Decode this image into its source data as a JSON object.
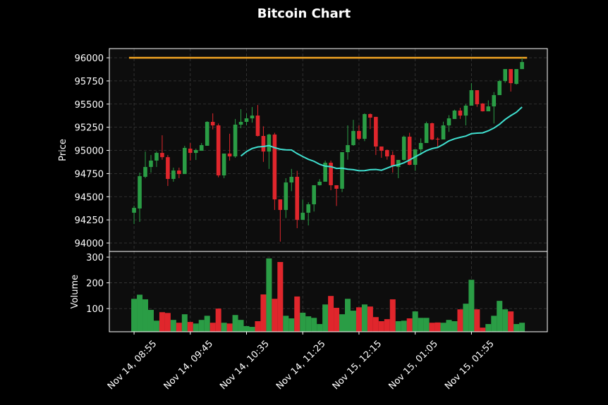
{
  "title": "Bitcoin Chart",
  "chart_data": {
    "type": "candlestick",
    "title": "Bitcoin Chart",
    "price_panel": {
      "ylabel": "Price",
      "yticks": [
        94000,
        94250,
        94500,
        94750,
        95000,
        95250,
        95500,
        95750,
        96000
      ],
      "ylim": [
        93909,
        96099
      ],
      "horizontal_line": {
        "value": 96000,
        "color": "#f5a623"
      },
      "moving_average_color": "#40e0d0"
    },
    "volume_panel": {
      "ylabel": "Volume",
      "yticks": [
        100,
        200,
        300
      ],
      "ylim": [
        10,
        322
      ]
    },
    "xtick_labels": [
      "Nov 14, 08:55",
      "Nov 14, 09:45",
      "Nov 14, 10:35",
      "Nov 14, 11:25",
      "Nov 15, 12:15",
      "Nov 15, 01:05",
      "Nov 15, 01:55"
    ],
    "xtick_every_n_candles": 10,
    "grid": true,
    "colors": {
      "up": "#2a9d45",
      "down": "#e0262c",
      "background": "#0d0d0d",
      "figure": "#000000"
    },
    "ohlc": [
      [
        94327,
        94403,
        94205,
        94380
      ],
      [
        94373,
        94760,
        94228,
        94722
      ],
      [
        94715,
        94988,
        94700,
        94821
      ],
      [
        94821,
        94950,
        94760,
        94890
      ],
      [
        94890,
        94988,
        94821,
        94973
      ],
      [
        94973,
        95163,
        94900,
        94927
      ],
      [
        94927,
        94950,
        94616,
        94692
      ],
      [
        94692,
        94814,
        94662,
        94783
      ],
      [
        94783,
        94814,
        94700,
        94745
      ],
      [
        94745,
        95050,
        94745,
        95027
      ],
      [
        95019,
        95080,
        94890,
        94973
      ],
      [
        94973,
        95019,
        94897,
        95004
      ],
      [
        94996,
        95080,
        94996,
        95057
      ],
      [
        95050,
        95316,
        95050,
        95308
      ],
      [
        95308,
        95400,
        95227,
        95270
      ],
      [
        95270,
        95290,
        94710,
        94730
      ],
      [
        94730,
        94966,
        94700,
        94966
      ],
      [
        94966,
        95180,
        94890,
        94935
      ],
      [
        94935,
        95339,
        94920,
        95278
      ],
      [
        95278,
        95445,
        95240,
        95308
      ],
      [
        95308,
        95400,
        95270,
        95346
      ],
      [
        95346,
        95468,
        95300,
        95376
      ],
      [
        95376,
        95490,
        95150,
        95156
      ],
      [
        95156,
        95260,
        94876,
        94988
      ],
      [
        94988,
        95180,
        94800,
        95171
      ],
      [
        95171,
        95190,
        94357,
        94471
      ],
      [
        94471,
        94471,
        94015,
        94357
      ],
      [
        94357,
        94700,
        94270,
        94654
      ],
      [
        94654,
        94800,
        94560,
        94715
      ],
      [
        94715,
        94780,
        94160,
        94250
      ],
      [
        94250,
        94470,
        94250,
        94327
      ],
      [
        94327,
        94440,
        94190,
        94418
      ],
      [
        94418,
        94624,
        94340,
        94624
      ],
      [
        94624,
        94690,
        94620,
        94662
      ],
      [
        94662,
        94890,
        94662,
        94867
      ],
      [
        94867,
        94890,
        94570,
        94624
      ],
      [
        94624,
        94624,
        94400,
        94586
      ],
      [
        94586,
        94981,
        94550,
        94981
      ],
      [
        94981,
        95270,
        94900,
        95057
      ],
      [
        95057,
        95330,
        95050,
        95210
      ],
      [
        95210,
        95270,
        95110,
        95125
      ],
      [
        95125,
        95400,
        95100,
        95392
      ],
      [
        95392,
        95400,
        95230,
        95354
      ],
      [
        95362,
        95362,
        94950,
        95042
      ],
      [
        95042,
        95042,
        94920,
        94996
      ],
      [
        95004,
        95010,
        94900,
        94935
      ],
      [
        94950,
        94990,
        94760,
        94836
      ],
      [
        94821,
        94897,
        94700,
        94897
      ],
      [
        94897,
        95160,
        94890,
        95148
      ],
      [
        95148,
        95190,
        94840,
        94844
      ],
      [
        94844,
        95011,
        94780,
        95011
      ],
      [
        95011,
        95130,
        94950,
        95080
      ],
      [
        95080,
        95310,
        95080,
        95293
      ],
      [
        95293,
        95300,
        95110,
        95118
      ],
      [
        95125,
        95140,
        95030,
        95118
      ],
      [
        95118,
        95310,
        95118,
        95270
      ],
      [
        95270,
        95380,
        95200,
        95346
      ],
      [
        95339,
        95440,
        95339,
        95430
      ],
      [
        95430,
        95460,
        95340,
        95376
      ],
      [
        95376,
        95500,
        95270,
        95483
      ],
      [
        95483,
        95726,
        95483,
        95650
      ],
      [
        95650,
        95650,
        95470,
        95498
      ],
      [
        95506,
        95510,
        95420,
        95422
      ],
      [
        95422,
        95540,
        95422,
        95475
      ],
      [
        95475,
        95630,
        95290,
        95597
      ],
      [
        95597,
        95760,
        95597,
        95749
      ],
      [
        95749,
        95878,
        95730,
        95878
      ],
      [
        95878,
        95878,
        95635,
        95726
      ],
      [
        95718,
        95878,
        95710,
        95878
      ],
      [
        95878,
        96000,
        95878,
        95954
      ]
    ],
    "volume": [
      138,
      154,
      136,
      95,
      53,
      86,
      83,
      56,
      45,
      78,
      48,
      42,
      56,
      72,
      45,
      100,
      45,
      42,
      75,
      56,
      32,
      29,
      51,
      155,
      295,
      138,
      281,
      72,
      62,
      147,
      84,
      70,
      64,
      40,
      116,
      149,
      103,
      78,
      138,
      92,
      105,
      116,
      108,
      67,
      51,
      59,
      136,
      51,
      53,
      62,
      89,
      64,
      64,
      45,
      46,
      45,
      56,
      51,
      97,
      119,
      212,
      97,
      26,
      40,
      72,
      130,
      97,
      89,
      40,
      45
    ]
  }
}
